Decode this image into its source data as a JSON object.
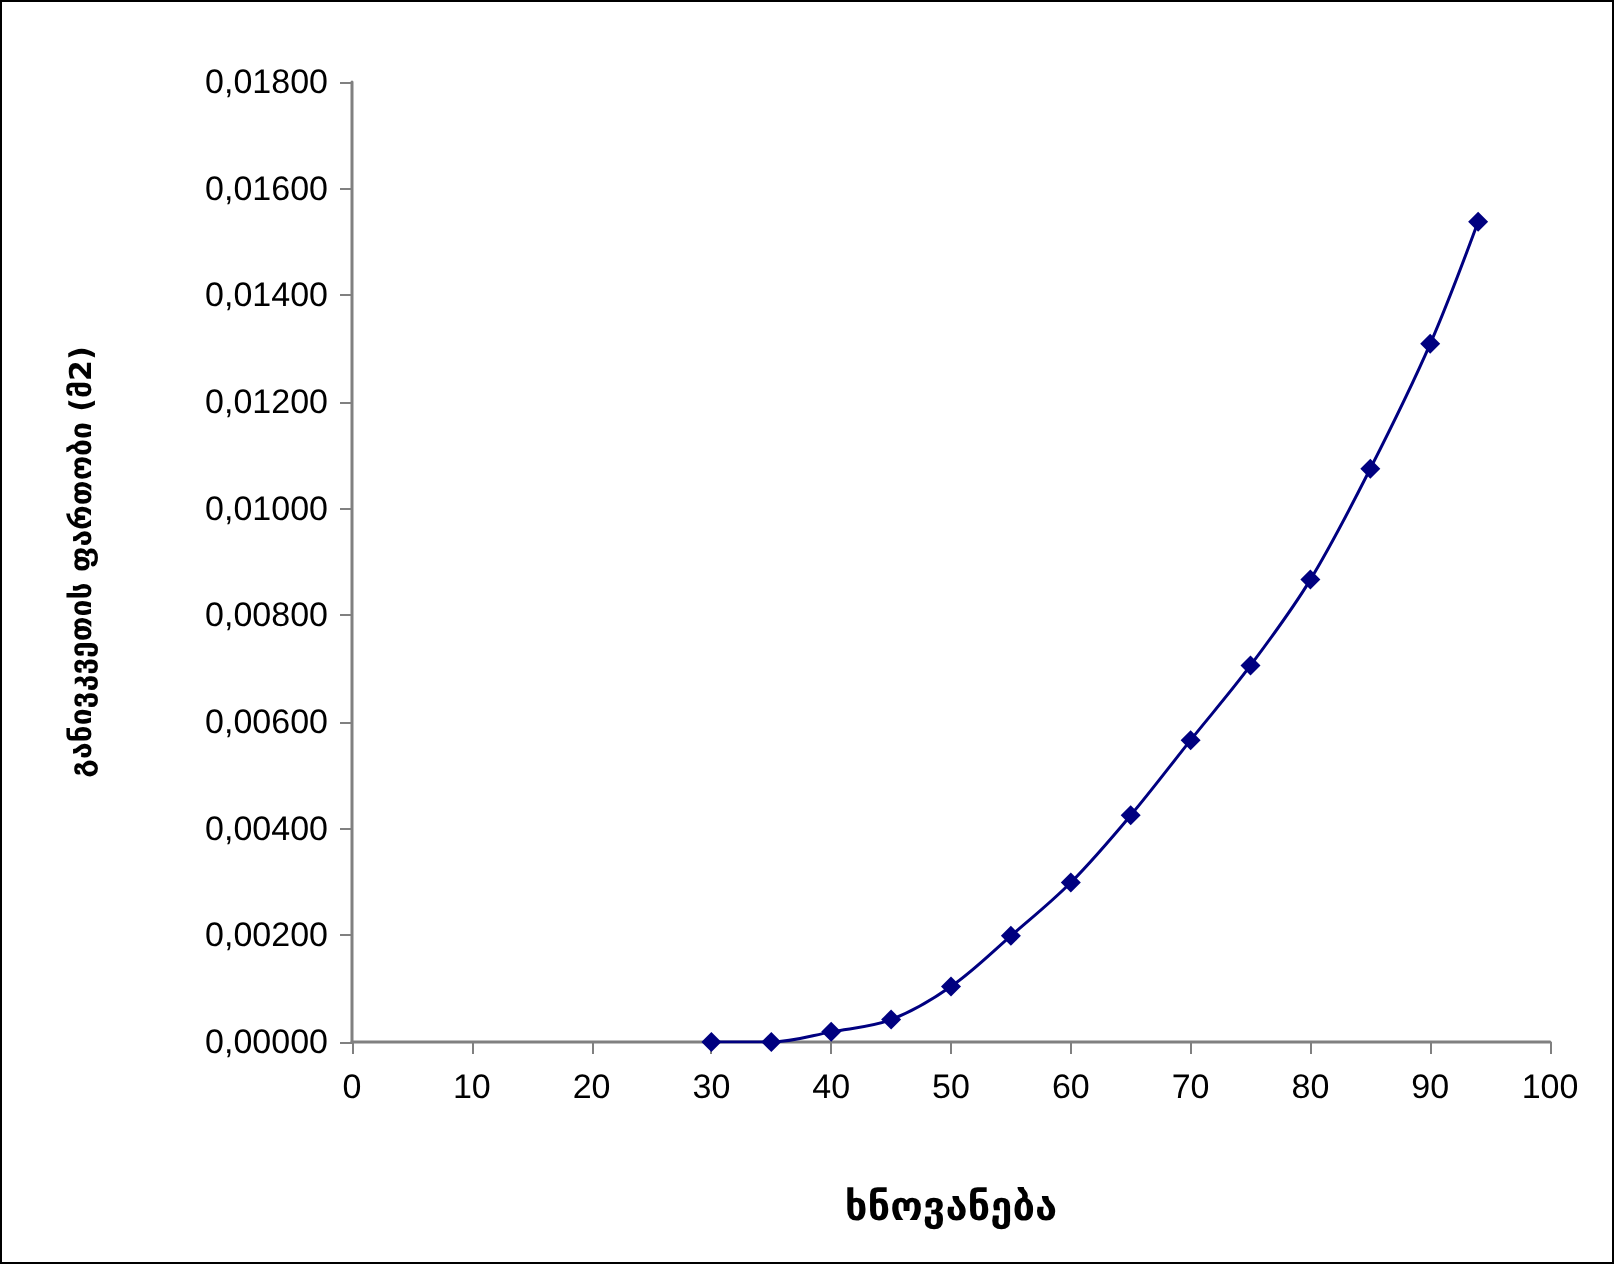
{
  "chart_data": {
    "type": "line",
    "xlabel": "ხნოვანება",
    "ylabel": "განივკვეთის ფართობი (მ2)",
    "x": [
      30,
      35,
      40,
      45,
      50,
      55,
      60,
      65,
      70,
      75,
      80,
      85,
      90,
      94
    ],
    "series": [
      {
        "color": "#000080",
        "values": [
          0,
          0,
          0.00019,
          0.00042,
          0.00104,
          0.00199,
          0.00299,
          0.00425,
          0.00566,
          0.00706,
          0.00867,
          0.01075,
          0.01309,
          0.01538
        ]
      }
    ],
    "xlim": [
      0,
      100
    ],
    "xticks": [
      0,
      10,
      20,
      30,
      40,
      50,
      60,
      70,
      80,
      90,
      100
    ],
    "ylim": [
      0,
      0.018
    ],
    "yticks": [
      {
        "value": 0,
        "label": "0,00000"
      },
      {
        "value": 0.002,
        "label": "0,00200"
      },
      {
        "value": 0.004,
        "label": "0,00400"
      },
      {
        "value": 0.006,
        "label": "0,00600"
      },
      {
        "value": 0.008,
        "label": "0,00800"
      },
      {
        "value": 0.01,
        "label": "0,01000"
      },
      {
        "value": 0.012,
        "label": "0,01200"
      },
      {
        "value": 0.014,
        "label": "0,01400"
      },
      {
        "value": 0.016,
        "label": "0,01600"
      },
      {
        "value": 0.018,
        "label": "0,01800"
      }
    ],
    "grid": false,
    "marker": "diamond",
    "line_style": "solid"
  }
}
